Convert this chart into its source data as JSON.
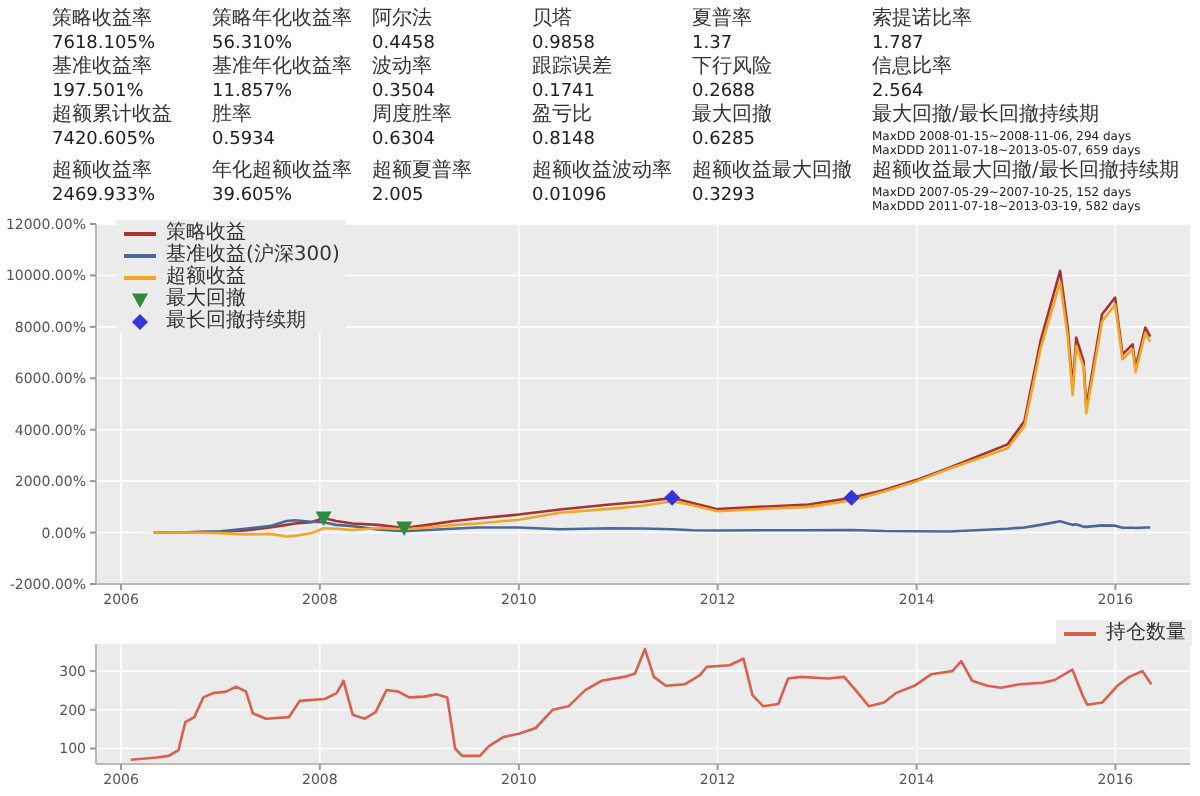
{
  "chart_data": [
    {
      "type": "other",
      "annotations": [
        "策略收益率",
        "7618.105%",
        "策略年化收益率",
        "56.310%",
        "阿尔法",
        "0.4458",
        "贝塔",
        "0.9858",
        "夏普率",
        "1.37",
        "索提诺比率",
        "1.787",
        "基准收益率",
        "197.501%",
        "基准年化收益率",
        "11.857%",
        "波动率",
        "0.3504",
        "跟踪误差",
        "0.1741",
        "下行风险",
        "0.2688",
        "信息比率",
        "2.564",
        "超额累计收益",
        "7420.605%",
        "胜率",
        "0.5934",
        "周度胜率",
        "0.6304",
        "盈亏比",
        "0.8148",
        "最大回撤",
        "0.6285",
        "最大回撤/最长回撤持续期",
        "MaxDD 2008-01-15~2008-11-06, 294 days\nMaxDDD 2011-07-18~2013-05-07, 659 days",
        "超额收益率",
        "2469.933%",
        "年化超额收益率",
        "39.605%",
        "超额夏普率",
        "2.005",
        "超额收益波动率",
        "0.01096",
        "超额收益最大回撤",
        "0.3293",
        "超额收益最大回撤/最长回撤持续期",
        "MaxDD 2007-05-29~2007-10-25, 152 days\nMaxDDD 2011-07-18~2013-03-19, 582 days"
      ]
    },
    {
      "type": "line",
      "x": [
        "2006-05",
        "2006-09",
        "2007-01",
        "2007-04",
        "2007-07",
        "2007-09",
        "2007-10",
        "2007-12",
        "2008-01-15",
        "2008-03",
        "2008-05",
        "2008-08",
        "2008-11-06",
        "2009-02",
        "2009-05",
        "2009-08",
        "2010-01",
        "2010-06",
        "2010-12",
        "2011-04",
        "2011-07-18",
        "2011-10",
        "2012-01",
        "2012-06",
        "2012-12",
        "2013-05-07",
        "2013-09",
        "2014-01",
        "2014-05",
        "2014-12",
        "2015-02",
        "2015-04",
        "2015-06-12",
        "2015-07-10",
        "2015-07-28",
        "2015-08-10",
        "2015-09-06",
        "2015-09-16",
        "2015-11-13",
        "2015-12-31",
        "2016-01-27",
        "2016-03-04",
        "2016-03-15",
        "2016-04-20",
        "2016-05-08"
      ],
      "series": [
        {
          "name": "策略收益",
          "color": "#a8322e",
          "values": [
            0,
            10,
            30,
            80,
            200,
            300,
            350,
            400,
            570,
            450,
            350,
            300,
            180,
            300,
            440,
            550,
            700,
            900,
            1090,
            1200,
            1350,
            1150,
            910,
            1000,
            1090,
            1350,
            1650,
            2050,
            2520,
            3430,
            4340,
            7450,
            10180,
            7970,
            5640,
            7580,
            6670,
            4860,
            8490,
            9140,
            6930,
            7320,
            6420,
            7970,
            7618
          ]
        },
        {
          "name": "基准收益(沪深300)",
          "color": "#47699a",
          "values": [
            0,
            10,
            50,
            150,
            250,
            450,
            480,
            420,
            400,
            300,
            250,
            120,
            50,
            100,
            150,
            200,
            200,
            130,
            170,
            160,
            130,
            90,
            80,
            90,
            90,
            100,
            60,
            50,
            40,
            150,
            200,
            300,
            440,
            350,
            300,
            320,
            230,
            220,
            280,
            270,
            190,
            190,
            180,
            200,
            197.5
          ]
        },
        {
          "name": "超额收益",
          "color": "#f2a628",
          "values": [
            0,
            0,
            -20,
            -70,
            -50,
            -150,
            -130,
            -20,
            170,
            150,
            100,
            180,
            130,
            200,
            290,
            350,
            500,
            770,
            920,
            1040,
            1220,
            1060,
            830,
            910,
            1000,
            1250,
            1590,
            2000,
            2480,
            3280,
            4140,
            7150,
            9740,
            7620,
            5340,
            7260,
            6440,
            4640,
            8210,
            8870,
            6740,
            7130,
            6240,
            7770,
            7420.5
          ]
        },
        {
          "name": "最大回撤",
          "type": "scatter",
          "marker": "triangle",
          "color": "#2e8b3a",
          "x": [
            "2008-01-15",
            "2008-11-06"
          ],
          "values": [
            570,
            180
          ]
        },
        {
          "name": "最长回撤持续期",
          "type": "scatter",
          "marker": "diamond",
          "color": "#3535d8",
          "x": [
            "2011-07-18",
            "2013-05-07"
          ],
          "values": [
            1350,
            1350
          ]
        }
      ],
      "xlim": [
        "2005-10",
        "2016-10"
      ],
      "xticks": [
        "2006",
        "2008",
        "2010",
        "2012",
        "2014",
        "2016"
      ],
      "ylim": [
        -2000,
        12000
      ],
      "yticks": [
        {
          "value": -2000,
          "label": "-2000.00%"
        },
        {
          "value": 0,
          "label": "0.00%"
        },
        {
          "value": 2000,
          "label": "2000.00%"
        },
        {
          "value": 4000,
          "label": "4000.00%"
        },
        {
          "value": 6000,
          "label": "6000.00%"
        },
        {
          "value": 8000,
          "label": "8000.00%"
        },
        {
          "value": 10000,
          "label": "10000.00%"
        },
        {
          "value": 12000,
          "label": "12000.00%"
        }
      ],
      "grid": true,
      "legend": "top left"
    },
    {
      "type": "line",
      "x": [
        "2006-02-06",
        "2006-05-12",
        "2006-06-25",
        "2006-07-31",
        "2006-08-25",
        "2006-09-27",
        "2006-10-30",
        "2006-12-05",
        "2007-01-22",
        "2007-02-28",
        "2007-04-05",
        "2007-04-30",
        "2007-06-17",
        "2007-09-09",
        "2007-10-19",
        "2008-01-19",
        "2008-03-03",
        "2008-03-28",
        "2008-05-01",
        "2008-06-14",
        "2008-07-24",
        "2008-09-02",
        "2008-10-16",
        "2008-11-24",
        "2009-01-19",
        "2009-03-04",
        "2009-04-13",
        "2009-05-12",
        "2009-06-07",
        "2009-08-11",
        "2009-09-13",
        "2009-11-06",
        "2010-01-01",
        "2010-03-04",
        "2010-05-05",
        "2010-07-02",
        "2010-09-02",
        "2010-10-31",
        "2011-01-23",
        "2011-03-04",
        "2011-04-09",
        "2011-05-12",
        "2011-06-25",
        "2011-09-02",
        "2011-10-27",
        "2011-11-22",
        "2012-02-14",
        "2012-04-05",
        "2012-05-08",
        "2012-06-17",
        "2012-08-11",
        "2012-09-16",
        "2012-11-03",
        "2013-02-10",
        "2013-04-10",
        "2013-05-31",
        "2013-07-10",
        "2013-09-03",
        "2013-10-16",
        "2013-12-24",
        "2014-02-24",
        "2014-05-12",
        "2014-06-14",
        "2014-07-24",
        "2014-09-17",
        "2014-11-07",
        "2015-01-15",
        "2015-04-09",
        "2015-05-23",
        "2015-07-27",
        "2015-09-02",
        "2015-09-20",
        "2015-11-14",
        "2016-01-08",
        "2016-02-21",
        "2016-04-09",
        "2016-05-12"
      ],
      "series": [
        {
          "name": "持仓数量",
          "color": "#d9604c",
          "values": [
            71,
            77,
            81,
            96,
            168,
            181,
            232,
            243,
            247,
            260,
            247,
            191,
            177,
            181,
            223,
            228,
            243,
            275,
            187,
            177,
            194,
            251,
            247,
            232,
            234,
            240,
            232,
            100,
            81,
            81,
            106,
            130,
            138,
            153,
            200,
            209,
            251,
            275,
            285,
            294,
            357,
            285,
            262,
            266,
            289,
            311,
            315,
            332,
            238,
            209,
            215,
            281,
            285,
            281,
            285,
            243,
            209,
            219,
            243,
            262,
            292,
            300,
            326,
            275,
            262,
            257,
            266,
            270,
            277,
            304,
            238,
            213,
            219,
            262,
            285,
            300,
            266
          ]
        }
      ],
      "xlim": [
        "2005-10",
        "2016-10"
      ],
      "xticks": [
        "2006",
        "2008",
        "2010",
        "2012",
        "2014",
        "2016"
      ],
      "ylim": [
        60,
        370
      ],
      "yticks": [
        100,
        200,
        300
      ],
      "grid": true,
      "legend": "top right"
    }
  ]
}
